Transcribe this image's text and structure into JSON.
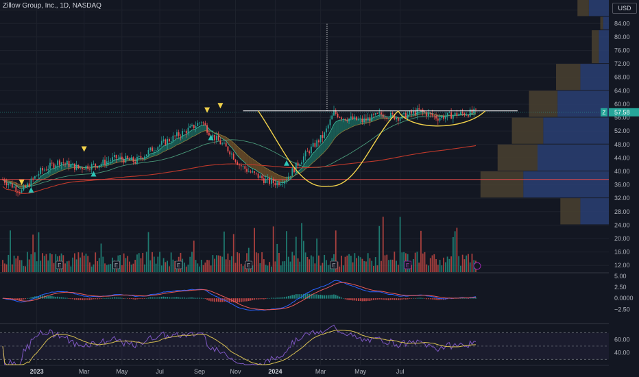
{
  "header": {
    "title": "Zillow Group, Inc., 1D, NASDAQ",
    "currency": "USD"
  },
  "price_marker": {
    "symbol": "Z",
    "value": "57.58"
  },
  "earnings_label": "E",
  "colors": {
    "background": "#131722",
    "up": "#26a69a",
    "down": "#ef5350",
    "grid": "#1e222d",
    "resistance": "#ffffff",
    "support": "#e84b4b",
    "cup": "#f2d24b",
    "ma_long": "#c0392b",
    "vp_up": "#2a3f73",
    "vp_down": "#4a4130",
    "macd_line": "#2962ff",
    "macd_signal": "#e85a5a",
    "rsi_line": "#7e57c2",
    "rsi_ma": "#d7bf52"
  },
  "chart_data": [
    {
      "type": "candlestick",
      "title": "Zillow Group, Inc., 1D, NASDAQ",
      "x_ticks": [
        "2023",
        "Mar",
        "May",
        "Jul",
        "Sep",
        "Nov",
        "2024",
        "Mar",
        "May",
        "Jul"
      ],
      "y_ticks": [
        "88.00",
        "84.00",
        "80.00",
        "76.00",
        "72.00",
        "68.00",
        "64.00",
        "60.00",
        "56.00",
        "52.00",
        "48.00",
        "44.00",
        "40.00",
        "36.00",
        "32.00",
        "28.00",
        "24.00",
        "20.00",
        "16.00",
        "12.00"
      ],
      "y_range": [
        10,
        91
      ],
      "last_price": 57.58,
      "resistance_level": 58.0,
      "support_level": 37.6,
      "price_path": [
        [
          0,
          37.5
        ],
        [
          10,
          34
        ],
        [
          20,
          40
        ],
        [
          30,
          43
        ],
        [
          40,
          41
        ],
        [
          50,
          42
        ],
        [
          60,
          44
        ],
        [
          70,
          43
        ],
        [
          80,
          47
        ],
        [
          90,
          50
        ],
        [
          100,
          53
        ],
        [
          105,
          55
        ],
        [
          110,
          51
        ],
        [
          120,
          46
        ],
        [
          125,
          42
        ],
        [
          130,
          40
        ],
        [
          140,
          37
        ],
        [
          145,
          36.5
        ],
        [
          150,
          38
        ],
        [
          160,
          45
        ],
        [
          170,
          51
        ],
        [
          175,
          57.5
        ],
        [
          180,
          56
        ],
        [
          190,
          55
        ],
        [
          200,
          57
        ],
        [
          210,
          56
        ],
        [
          220,
          58
        ],
        [
          230,
          56
        ],
        [
          240,
          57
        ],
        [
          250,
          57.6
        ]
      ],
      "sell_signals": [
        [
          10,
          35.9
        ],
        [
          43,
          45.8
        ],
        [
          108,
          57.4
        ],
        [
          115,
          58.7
        ]
      ],
      "buy_signals": [
        [
          15,
          35.3
        ],
        [
          48,
          40.1
        ],
        [
          110,
          50.9
        ],
        [
          150,
          43.3
        ]
      ],
      "earnings_markers": [
        30,
        60,
        93,
        130,
        175
      ],
      "upcoming_earnings": 214,
      "dotted_target": [
        171,
        58,
        84
      ],
      "volume_profile": [
        {
          "low": 86,
          "high": 91,
          "up": 14,
          "down": 8
        },
        {
          "low": 82,
          "high": 86,
          "up": 4,
          "down": 2
        },
        {
          "low": 72,
          "high": 82,
          "up": 7,
          "down": 5
        },
        {
          "low": 64,
          "high": 72,
          "up": 20,
          "down": 17
        },
        {
          "low": 56,
          "high": 64,
          "up": 36,
          "down": 20
        },
        {
          "low": 48,
          "high": 56,
          "up": 46,
          "down": 22
        },
        {
          "low": 40,
          "high": 48,
          "up": 50,
          "down": 28
        },
        {
          "low": 32,
          "high": 40,
          "up": 60,
          "down": 30
        },
        {
          "low": 24,
          "high": 32,
          "up": 20,
          "down": 14
        }
      ]
    },
    {
      "type": "bar",
      "title": "MACD",
      "y_ticks": [
        "5.00",
        "2.50",
        "0.0000",
        "−2.50"
      ],
      "y_range": [
        -5.4,
        5.6
      ]
    },
    {
      "type": "line",
      "title": "RSI",
      "y_ticks": [
        "60.00",
        "40.00"
      ],
      "y_range": [
        22,
        82
      ],
      "bands": [
        70,
        50,
        30
      ]
    }
  ]
}
